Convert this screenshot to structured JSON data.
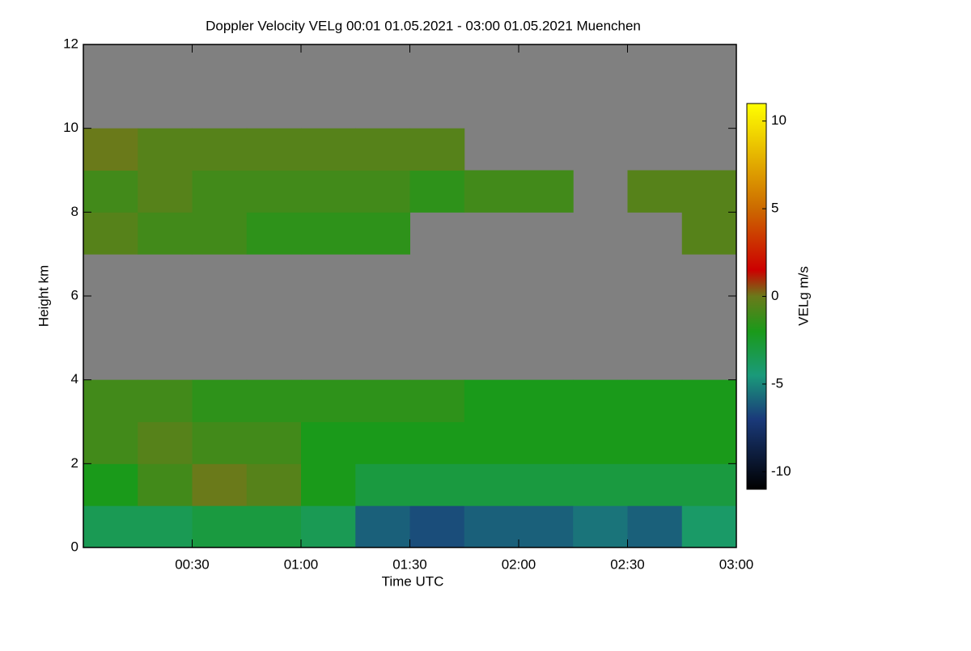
{
  "chart_data": {
    "type": "heatmap",
    "title": "Doppler Velocity VELg   00:01 01.05.2021 - 03:00 01.05.2021 Muenchen",
    "x_label": "Time UTC",
    "y_label": "Height km",
    "colorbar_label": "VELg m/s",
    "xlim": [
      0,
      180
    ],
    "xticks": [
      {
        "value": 30,
        "label": "00:30"
      },
      {
        "value": 60,
        "label": "01:00"
      },
      {
        "value": 90,
        "label": "01:30"
      },
      {
        "value": 120,
        "label": "02:00"
      },
      {
        "value": 150,
        "label": "02:30"
      },
      {
        "value": 180,
        "label": "03:00"
      }
    ],
    "ylim": [
      0,
      12
    ],
    "yticks": [
      0,
      2,
      4,
      6,
      8,
      10,
      12
    ],
    "zlim": [
      -11,
      11
    ],
    "zticks": [
      -10,
      -5,
      0,
      5,
      10
    ],
    "x_bins": [
      0,
      15,
      30,
      45,
      60,
      75,
      90,
      105,
      120,
      135,
      150,
      165,
      180
    ],
    "y_bins": [
      0,
      1,
      2,
      3,
      4,
      5,
      6,
      7,
      8,
      9,
      10,
      11,
      12
    ],
    "z": [
      [
        -3.5,
        -3.5,
        -3,
        -3,
        -3.5,
        -6,
        -6.5,
        -6,
        -6,
        -5.5,
        -6,
        -4
      ],
      [
        -2,
        -1,
        0,
        -0.5,
        -2,
        -3,
        -3,
        -3,
        -3,
        -3,
        -3,
        -3
      ],
      [
        -1,
        -0.5,
        -1,
        -1,
        -2,
        -2,
        -2,
        -2,
        -2,
        -2,
        -2,
        -2
      ],
      [
        -1,
        -1,
        -1.5,
        -1.5,
        -1.5,
        -1.5,
        -1.5,
        -2,
        -2,
        -2,
        -2,
        -2
      ],
      [
        null,
        null,
        null,
        null,
        null,
        null,
        null,
        null,
        null,
        null,
        null,
        null
      ],
      [
        null,
        null,
        null,
        null,
        null,
        null,
        null,
        null,
        null,
        null,
        null,
        null
      ],
      [
        null,
        null,
        null,
        null,
        null,
        null,
        null,
        null,
        null,
        null,
        null,
        null
      ],
      [
        -0.5,
        -1,
        -1,
        -1.5,
        -1.5,
        -1.5,
        null,
        null,
        null,
        null,
        null,
        -0.5
      ],
      [
        -1,
        -0.5,
        -1,
        -1,
        -1,
        -1,
        -1.5,
        -1,
        -1,
        null,
        -0.5,
        -0.5
      ],
      [
        0,
        -0.5,
        -0.5,
        -0.5,
        -0.5,
        -0.5,
        -0.5,
        null,
        null,
        null,
        null,
        null
      ],
      [
        null,
        null,
        null,
        null,
        null,
        null,
        null,
        null,
        null,
        null,
        null,
        null
      ],
      [
        null,
        null,
        null,
        null,
        null,
        null,
        null,
        null,
        null,
        null,
        null,
        null
      ]
    ],
    "no_data_color": "#808080",
    "colormap": [
      {
        "value": -11,
        "color": "#000000"
      },
      {
        "value": -7,
        "color": "#1a3a7a"
      },
      {
        "value": -4.5,
        "color": "#1a9a7a"
      },
      {
        "value": -2,
        "color": "#1a9a1a"
      },
      {
        "value": 0,
        "color": "#6a7a1a"
      },
      {
        "value": 1.5,
        "color": "#cc0000"
      },
      {
        "value": 5,
        "color": "#cc6a00"
      },
      {
        "value": 11,
        "color": "#ffff00"
      }
    ]
  }
}
